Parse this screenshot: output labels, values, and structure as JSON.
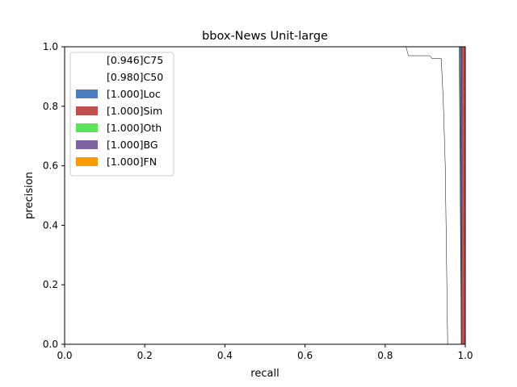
{
  "chart_data": {
    "type": "area",
    "title": "bbox-News Unit-large",
    "xlabel": "recall",
    "ylabel": "precision",
    "xlim": [
      0,
      1
    ],
    "ylim": [
      0,
      1
    ],
    "x_ticks": [
      "0.0",
      "0.2",
      "0.4",
      "0.6",
      "0.8",
      "1.0"
    ],
    "y_ticks": [
      "0.0",
      "0.2",
      "0.4",
      "0.6",
      "0.8",
      "1.0"
    ],
    "grid": false,
    "legend_position": "top-left",
    "series": [
      {
        "name": "[0.946]C75",
        "color": "#ffffff",
        "points": [
          [
            0,
            1
          ],
          [
            0.852,
            1
          ],
          [
            0.858,
            0.97
          ],
          [
            0.912,
            0.97
          ],
          [
            0.917,
            0.96
          ],
          [
            0.94,
            0.96
          ],
          [
            0.945,
            0.82
          ],
          [
            0.95,
            0.6
          ],
          [
            0.953,
            0.3
          ],
          [
            0.956,
            0
          ]
        ]
      },
      {
        "name": "[0.980]C50",
        "color": "#ffffff",
        "points": [
          [
            0,
            1
          ],
          [
            0.985,
            1
          ],
          [
            0.99,
            0
          ]
        ]
      },
      {
        "name": "[1.000]Loc",
        "color": "#4c7fc0",
        "points": [
          [
            0,
            1
          ],
          [
            0.99,
            1
          ],
          [
            0.99,
            0
          ],
          [
            1,
            0
          ]
        ]
      },
      {
        "name": "[1.000]Sim",
        "color": "#c0504d",
        "points": [
          [
            0,
            1
          ],
          [
            1,
            1
          ]
        ]
      },
      {
        "name": "[1.000]Oth",
        "color": "#5de35a",
        "points": [
          [
            0,
            1
          ],
          [
            1,
            1
          ]
        ]
      },
      {
        "name": "[1.000]BG",
        "color": "#8064a2",
        "points": [
          [
            0,
            1
          ],
          [
            1,
            1
          ]
        ]
      },
      {
        "name": "[1.000]FN",
        "color": "#f79b00",
        "points": [
          [
            0,
            1
          ],
          [
            1,
            1
          ]
        ]
      }
    ]
  }
}
